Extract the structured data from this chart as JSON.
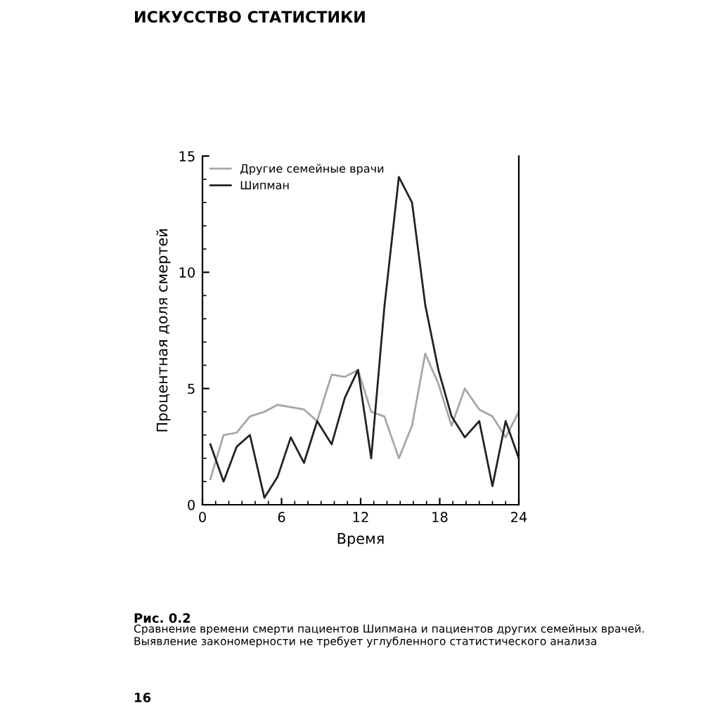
{
  "chart_data": {
    "type": "line",
    "xlabel": "Время",
    "ylabel": "Процентная доля смертей",
    "x": [
      0.6,
      1.6,
      2.6,
      3.6,
      4.7,
      5.7,
      6.7,
      7.7,
      8.7,
      9.8,
      10.8,
      11.8,
      12.8,
      13.8,
      14.9,
      15.9,
      16.9,
      17.9,
      18.9,
      19.9,
      21.0,
      22.0,
      23.0,
      24.0
    ],
    "series": [
      {
        "name": "Другие семейные врачи",
        "color": "#a6a6a6",
        "values": [
          1.1,
          3.0,
          3.1,
          3.8,
          4.0,
          4.3,
          4.2,
          4.1,
          3.6,
          5.6,
          5.5,
          5.8,
          4.0,
          3.8,
          2.0,
          3.4,
          6.5,
          5.2,
          3.4,
          5.0,
          4.1,
          3.8,
          2.9,
          4.0
        ]
      },
      {
        "name": "Шипман",
        "color": "#222222",
        "values": [
          2.6,
          1.0,
          2.5,
          3.0,
          0.3,
          1.2,
          2.9,
          1.8,
          3.6,
          2.6,
          4.6,
          5.8,
          2.0,
          8.5,
          14.1,
          13.0,
          8.6,
          5.8,
          3.8,
          2.9,
          3.6,
          0.8,
          3.6,
          2.0
        ]
      }
    ],
    "xlim": [
      0,
      24
    ],
    "ylim": [
      0,
      15
    ],
    "xticks": [
      0,
      6,
      12,
      18,
      24
    ],
    "yticks": [
      0,
      5,
      10,
      15
    ],
    "grid": false,
    "legend": "top left",
    "marker": "none",
    "line_style": "solid",
    "annotations": [
      "ИСКУССТВО СТАТИСТИКИ",
      "Рис. 0.2",
      "Сравнение времени смерти пациентов Шипмана и пациентов других семейных врачей. Выявление закономерности не требует углубленного статистического анализа",
      "16"
    ]
  }
}
